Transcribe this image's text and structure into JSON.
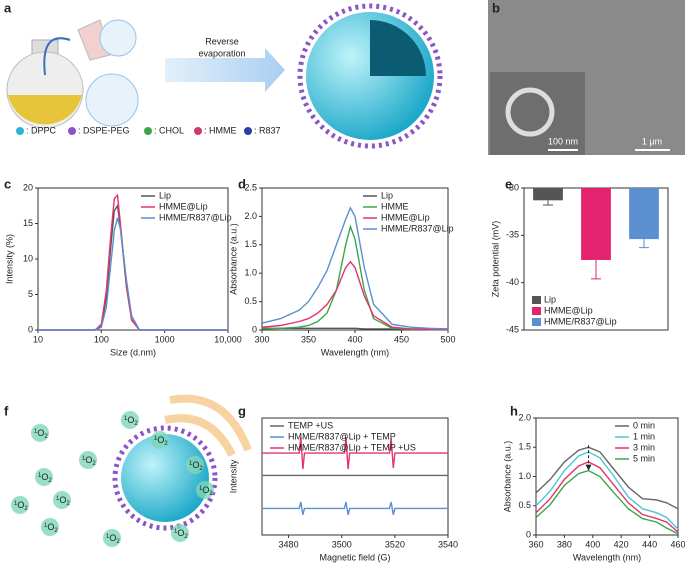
{
  "chart_data": [
    {
      "type": "line",
      "panel": "c",
      "xscale": "log",
      "xlabel": "Size (d.nm)",
      "ylabel": "Intensity (%)",
      "x": [
        10,
        80,
        100,
        120,
        140,
        160,
        180,
        200,
        250,
        300,
        400,
        10000
      ],
      "xlim": [
        10,
        10000
      ],
      "xticks": [
        10,
        100,
        1000,
        {
          "value": 10000,
          "label": "10,000"
        }
      ],
      "ylim": [
        0,
        20
      ],
      "yticks": [
        0,
        5,
        10,
        15,
        20
      ],
      "legend": "upper right",
      "series": [
        {
          "name": "Lip",
          "color": "#555555",
          "values": [
            0,
            0,
            0.6,
            4.5,
            11.5,
            16.8,
            17.5,
            14.5,
            6,
            1.5,
            0,
            0
          ]
        },
        {
          "name": "HMME@Lip",
          "color": "#e4336f",
          "values": [
            0,
            0,
            0.8,
            5.5,
            13,
            18.5,
            19,
            15,
            6.2,
            1.4,
            0,
            0
          ]
        },
        {
          "name": "HMME/R837@Lip",
          "color": "#5b8fd0",
          "values": [
            0,
            0,
            0.4,
            3.2,
            9,
            14,
            15.8,
            14.2,
            7,
            2,
            0,
            0
          ]
        }
      ]
    },
    {
      "type": "line",
      "panel": "d",
      "xlabel": "Wavelength (nm)",
      "ylabel": "Absorbance (a.u.)",
      "x": [
        300,
        320,
        340,
        350,
        360,
        370,
        380,
        390,
        395,
        400,
        410,
        420,
        440,
        460,
        480,
        500
      ],
      "xlim": [
        300,
        500
      ],
      "xticks": [
        300,
        350,
        400,
        450,
        500
      ],
      "ylim": [
        0,
        2.5
      ],
      "yticks": [
        0,
        0.5,
        {
          "value": 1,
          "label": "1.0"
        },
        1.5,
        {
          "value": 2,
          "label": "2.0"
        },
        2.5
      ],
      "legend": "upper right",
      "series": [
        {
          "name": "Lip",
          "color": "#555555",
          "values": [
            0.03,
            0.03,
            0.03,
            0.03,
            0.03,
            0.03,
            0.03,
            0.03,
            0.03,
            0.03,
            0.02,
            0.02,
            0.02,
            0.02,
            0.02,
            0.02
          ]
        },
        {
          "name": "HMME",
          "color": "#3aa84a",
          "values": [
            0.02,
            0.03,
            0.05,
            0.08,
            0.15,
            0.3,
            0.7,
            1.5,
            1.82,
            1.6,
            0.7,
            0.2,
            0.03,
            0.01,
            0.01,
            0.01
          ]
        },
        {
          "name": "HMME@Lip",
          "color": "#e4336f",
          "values": [
            0.05,
            0.08,
            0.15,
            0.2,
            0.3,
            0.45,
            0.7,
            1.1,
            1.2,
            1.1,
            0.6,
            0.25,
            0.05,
            0.02,
            0.01,
            0.01
          ]
        },
        {
          "name": "HMME/R837@Lip",
          "color": "#5b8fd0",
          "values": [
            0.12,
            0.2,
            0.35,
            0.5,
            0.75,
            1.05,
            1.5,
            1.95,
            2.15,
            2.0,
            1.1,
            0.45,
            0.1,
            0.05,
            0.03,
            0.02
          ]
        }
      ]
    },
    {
      "type": "bar",
      "panel": "e",
      "ylabel": "Zeta potential (mV)",
      "ylim": [
        -45,
        -30
      ],
      "yticks": [
        -30,
        -35,
        -40,
        -45
      ],
      "legend": "lower left",
      "series": [
        {
          "name": "Lip",
          "color": "#555555",
          "values": [
            -31.3
          ],
          "errors": [
            0.5
          ]
        },
        {
          "name": "HMME@Lip",
          "color": "#e4236f",
          "values": [
            -37.6
          ],
          "errors": [
            2
          ]
        },
        {
          "name": "HMME/R837@Lip",
          "color": "#5b8fd0",
          "values": [
            -35.4
          ],
          "errors": [
            0.9
          ]
        }
      ]
    },
    {
      "type": "line",
      "panel": "g",
      "xlabel": "Magnetic field (G)",
      "ylabel": "Intensity",
      "x": [
        3470,
        3484,
        3484.6,
        3485.4,
        3486,
        3501,
        3501.6,
        3502.4,
        3503,
        3518,
        3518.6,
        3519.4,
        3520,
        3540
      ],
      "xlim": [
        3470,
        3540
      ],
      "xticks": [
        3480,
        3500,
        3520,
        3540
      ],
      "ylim": [
        0,
        11
      ],
      "legend": "upper left",
      "series": [
        {
          "name": "TEMP +US",
          "color": "#666666",
          "values": [
            5.6,
            5.6,
            5.6,
            5.6,
            5.6,
            5.6,
            5.6,
            5.6,
            5.6,
            5.6,
            5.6,
            5.6,
            5.6,
            5.6
          ]
        },
        {
          "name": "HMME/R837@Lip + TEMP",
          "color": "#5b8fd0",
          "values": [
            2.5,
            2.5,
            3.1,
            1.9,
            2.5,
            2.5,
            3.1,
            1.9,
            2.5,
            2.5,
            3.1,
            1.9,
            2.5,
            2.5
          ]
        },
        {
          "name": "HMME/R837@Lip + TEMP +US",
          "color": "#e4336f",
          "values": [
            7.7,
            7.7,
            9.2,
            6.2,
            7.7,
            7.7,
            9.2,
            6.2,
            7.7,
            7.7,
            9.1,
            6.3,
            7.7,
            7.7
          ]
        }
      ]
    },
    {
      "type": "line",
      "panel": "h",
      "xlabel": "Wavelength (nm)",
      "ylabel": "Absorbance (a.u.)",
      "x": [
        360,
        370,
        380,
        390,
        397,
        405,
        415,
        425,
        435,
        445,
        452,
        460
      ],
      "xlim": [
        360,
        460
      ],
      "xticks": [
        360,
        380,
        400,
        420,
        440,
        460
      ],
      "ylim": [
        0,
        2
      ],
      "yticks": [
        0,
        0.5,
        {
          "value": 1,
          "label": "1.0"
        },
        1.5,
        {
          "value": 2,
          "label": "2.0"
        }
      ],
      "legend": "upper right",
      "series": [
        {
          "name": "0 min",
          "color": "#666666",
          "values": [
            0.72,
            0.95,
            1.25,
            1.45,
            1.5,
            1.42,
            1.12,
            0.82,
            0.62,
            0.6,
            0.55,
            0.45
          ]
        },
        {
          "name": "1 min",
          "color": "#4cc6d6",
          "values": [
            0.5,
            0.75,
            1.1,
            1.35,
            1.42,
            1.32,
            1.0,
            0.65,
            0.45,
            0.38,
            0.3,
            0.1
          ]
        },
        {
          "name": "3 min",
          "color": "#e4336f",
          "values": [
            0.38,
            0.62,
            0.95,
            1.18,
            1.25,
            1.15,
            0.85,
            0.55,
            0.35,
            0.28,
            0.22,
            0.05
          ]
        },
        {
          "name": "5 min",
          "color": "#3aa84a",
          "values": [
            0.3,
            0.52,
            0.85,
            1.05,
            1.1,
            1.0,
            0.72,
            0.45,
            0.28,
            0.22,
            0.12,
            0.02
          ]
        }
      ]
    }
  ],
  "schematics": {
    "a": {
      "panel": "a",
      "arrow_text": [
        "Reverse",
        "evaporation"
      ],
      "legend": [
        ": DPPC",
        ": DSPE-PEG",
        ": CHOL",
        ": HMME",
        ": R837"
      ]
    },
    "b": {
      "panel": "b",
      "scale_inset": "100 nm",
      "scale_main": "1 μm"
    },
    "f": {
      "panel": "f",
      "species": {
        "sup": "1",
        "base": "O",
        "sub": "2"
      }
    }
  }
}
